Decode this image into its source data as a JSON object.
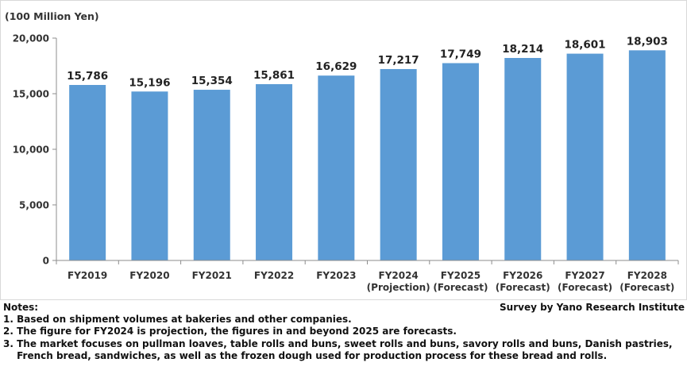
{
  "chart_data": {
    "type": "bar",
    "unit_label": "(100 Million Yen)",
    "categories": [
      [
        "FY2019"
      ],
      [
        "FY2020"
      ],
      [
        "FY2021"
      ],
      [
        "FY2022"
      ],
      [
        "FY2023"
      ],
      [
        "FY2024",
        "(Projection)"
      ],
      [
        "FY2025",
        "(Forecast)"
      ],
      [
        "FY2026",
        "(Forecast)"
      ],
      [
        "FY2027",
        "(Forecast)"
      ],
      [
        "FY2028",
        "(Forecast)"
      ]
    ],
    "values": [
      15786,
      15196,
      15354,
      15861,
      16629,
      17217,
      17749,
      18214,
      18601,
      18903
    ],
    "value_labels": [
      "15,786",
      "15,196",
      "15,354",
      "15,861",
      "16,629",
      "17,217",
      "17,749",
      "18,214",
      "18,601",
      "18,903"
    ],
    "ylim": [
      0,
      20000
    ],
    "yticks": [
      0,
      5000,
      10000,
      15000,
      20000
    ],
    "ytick_labels": [
      "0",
      "5,000",
      "10,000",
      "15,000",
      "20,000"
    ],
    "bar_color": "#5b9bd5",
    "grid": false,
    "legend": "none"
  },
  "notes": {
    "heading": "Notes:",
    "source": "Survey by Yano Research Institute",
    "items": [
      {
        "num": "1. ",
        "text": "Based on shipment volumes at bakeries and other companies."
      },
      {
        "num": "2. ",
        "text": "The figure for FY2024 is projection, the figures in and beyond 2025 are forecasts."
      },
      {
        "num": "3. ",
        "text": "The market focuses on pullman loaves, table rolls and buns, sweet rolls and buns, savory rolls and buns, Danish pastries, French bread, sandwiches, as well as the frozen dough used for production process for these bread and rolls."
      }
    ]
  }
}
